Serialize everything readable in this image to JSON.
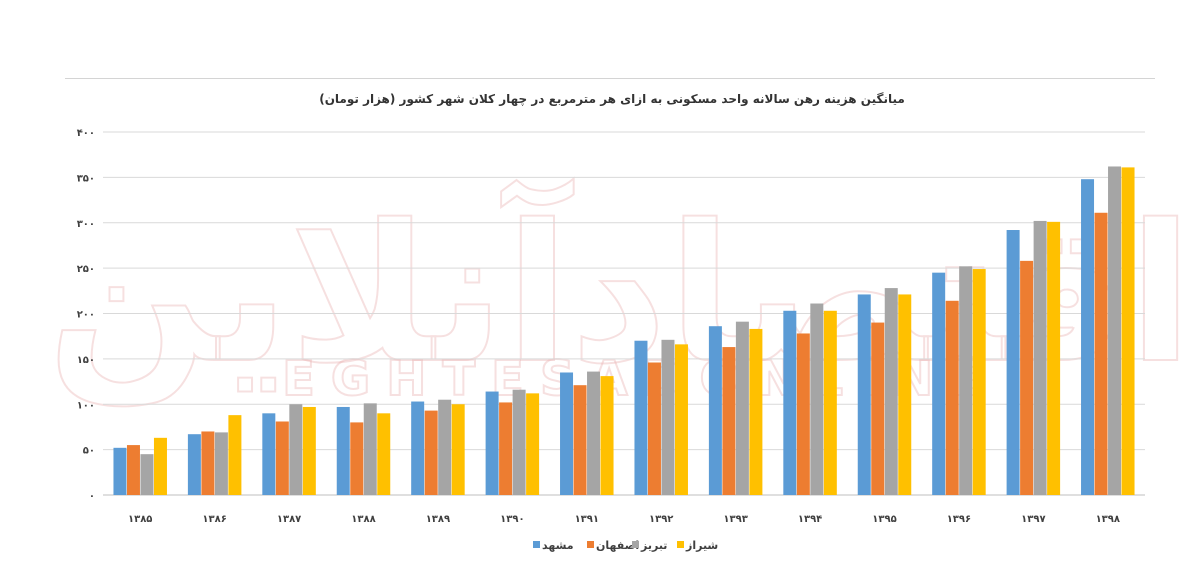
{
  "chart_data": {
    "type": "bar",
    "title": "میانگین هزینه رهن سالانه واحد مسکونی به ازای هر مترمربع در چهار کلان شهر کشور (هزار تومان)",
    "categories": [
      "۱۳۸۵",
      "۱۳۸۶",
      "۱۳۸۷",
      "۱۳۸۸",
      "۱۳۸۹",
      "۱۳۹۰",
      "۱۳۹۱",
      "۱۳۹۲",
      "۱۳۹۳",
      "۱۳۹۴",
      "۱۳۹۵",
      "۱۳۹۶",
      "۱۳۹۷",
      "۱۳۹۸"
    ],
    "y_ticks": [
      {
        "value": 0,
        "label": "۰"
      },
      {
        "value": 50,
        "label": "۵۰"
      },
      {
        "value": 100,
        "label": "۱۰۰"
      },
      {
        "value": 150,
        "label": "۱۵۰"
      },
      {
        "value": 200,
        "label": "۲۰۰"
      },
      {
        "value": 250,
        "label": "۲۵۰"
      },
      {
        "value": 300,
        "label": "۳۰۰"
      },
      {
        "value": 350,
        "label": "۳۵۰"
      },
      {
        "value": 400,
        "label": "۴۰۰"
      }
    ],
    "ylim": [
      0,
      400
    ],
    "grid": true,
    "legend_position": "bottom",
    "series": [
      {
        "name": "مشهد",
        "color": "#5b9bd5",
        "values": [
          52,
          67,
          90,
          97,
          103,
          114,
          135,
          170,
          186,
          203,
          221,
          245,
          292,
          348
        ]
      },
      {
        "name": "اصفهان",
        "color": "#ed7d31",
        "values": [
          55,
          70,
          81,
          80,
          93,
          102,
          121,
          146,
          163,
          178,
          190,
          214,
          258,
          311
        ]
      },
      {
        "name": "تبریز",
        "color": "#a5a5a5",
        "values": [
          45,
          69,
          100,
          101,
          105,
          116,
          136,
          171,
          191,
          211,
          228,
          252,
          302,
          362
        ]
      },
      {
        "name": "شیراز",
        "color": "#ffc000",
        "values": [
          63,
          88,
          97,
          90,
          100,
          112,
          131,
          166,
          183,
          203,
          221,
          249,
          301,
          361
        ]
      }
    ]
  },
  "watermark": {
    "main": "اقتصادآنلاین",
    "latin": "EGHTESADONLINE"
  }
}
